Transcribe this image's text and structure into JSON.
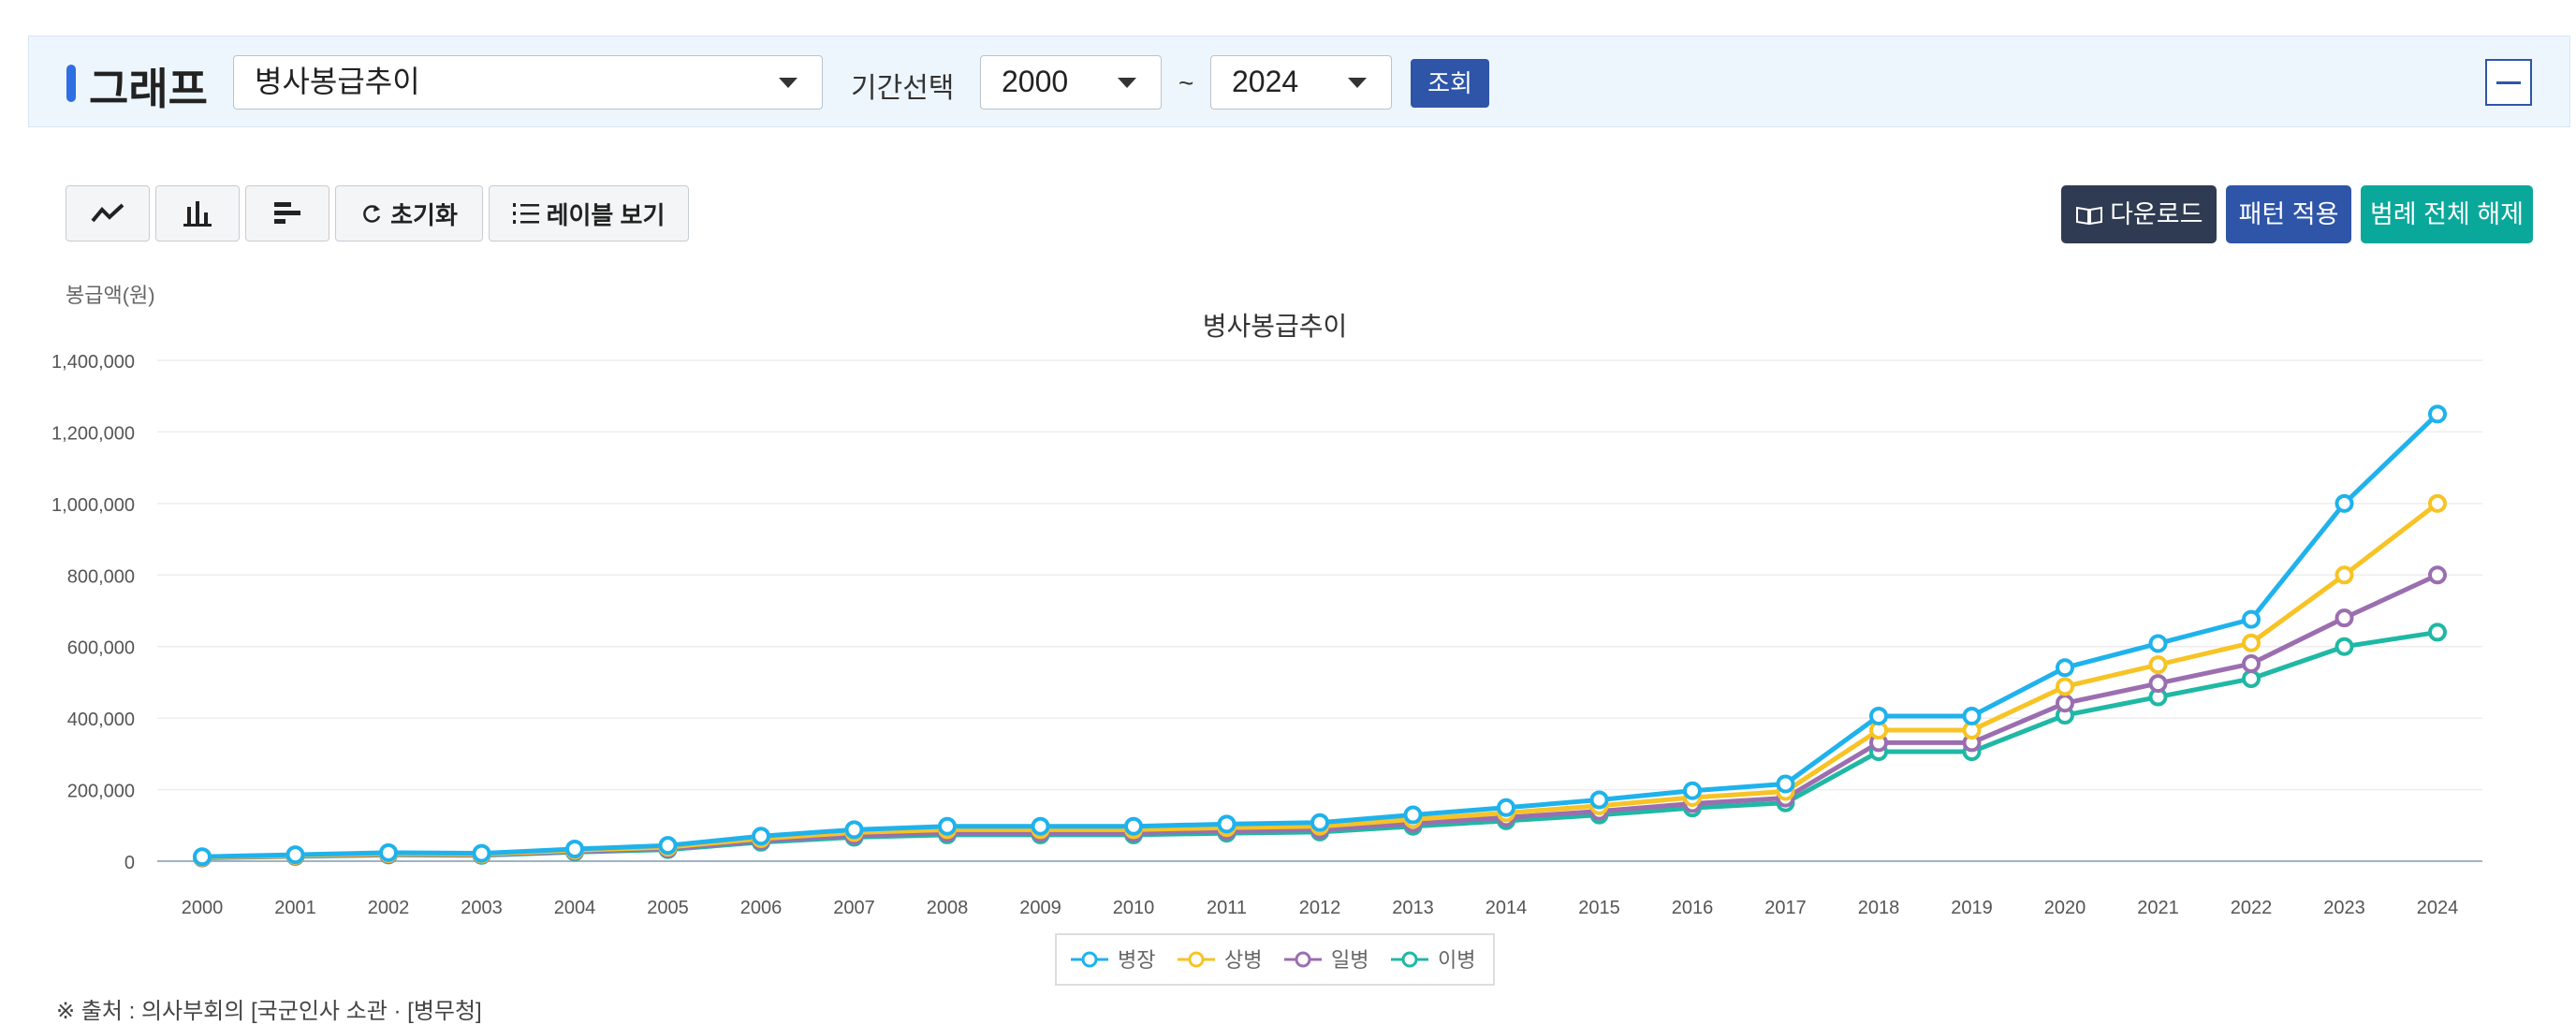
{
  "header": {
    "title": "그래프",
    "chart_select": "병사봉급추이",
    "period_label": "기간선택",
    "start_year": "2000",
    "tilde": "~",
    "end_year": "2024",
    "search_label": "조회"
  },
  "toolbar": {
    "reset_label": "초기화",
    "label_view_label": "레이블 보기",
    "download_label": "다운로드",
    "pattern_label": "패턴 적용",
    "legend_off_label": "범례 전체 해제"
  },
  "colors": {
    "accent": "#2f6ee3",
    "dark_button": "#2f3b52",
    "blue_button": "#2e55a8",
    "teal_button": "#0aa89a"
  },
  "chart_data": {
    "type": "line",
    "title": "병사봉급추이",
    "ylabel": "봉급액(원)",
    "xlabel": "",
    "ylim": [
      0,
      1400000
    ],
    "yticks": [
      0,
      200000,
      400000,
      600000,
      800000,
      1000000,
      1200000,
      1400000
    ],
    "ytick_labels": [
      "0",
      "200,000",
      "400,000",
      "600,000",
      "800,000",
      "1,000,000",
      "1,200,000",
      "1,400,000"
    ],
    "categories": [
      "2000",
      "2001",
      "2002",
      "2003",
      "2004",
      "2005",
      "2006",
      "2007",
      "2008",
      "2009",
      "2010",
      "2011",
      "2012",
      "2013",
      "2014",
      "2015",
      "2016",
      "2017",
      "2018",
      "2019",
      "2020",
      "2021",
      "2022",
      "2023",
      "2024"
    ],
    "series": [
      {
        "name": "병장",
        "color": "#1fb2ec",
        "values": [
          12500,
          18000,
          24000,
          22000,
          34000,
          44000,
          70000,
          88000,
          97500,
          97500,
          97500,
          103800,
          108000,
          129400,
          149700,
          171400,
          197000,
          216000,
          405700,
          405700,
          540900,
          608500,
          676100,
          1000000,
          1250000
        ]
      },
      {
        "name": "상병",
        "color": "#f7c325",
        "values": [
          11000,
          15800,
          21000,
          19500,
          30500,
          39000,
          63000,
          80000,
          88000,
          88000,
          88000,
          93700,
          97500,
          116800,
          135100,
          154800,
          178000,
          195000,
          366200,
          366200,
          488200,
          549200,
          610200,
          800000,
          1000000
        ]
      },
      {
        "name": "일병",
        "color": "#9b6eb0",
        "values": [
          9800,
          14300,
          19000,
          17600,
          27500,
          35000,
          57000,
          72000,
          79500,
          79500,
          79500,
          84700,
          88000,
          105600,
          122100,
          139800,
          161000,
          176400,
          331300,
          331300,
          441700,
          496900,
          552100,
          680000,
          800000
        ]
      },
      {
        "name": "이병",
        "color": "#1fb8a4",
        "values": [
          9000,
          13300,
          17500,
          16300,
          25400,
          32500,
          53000,
          67000,
          73500,
          73500,
          73500,
          78300,
          81500,
          97500,
          112900,
          129200,
          148800,
          163000,
          306100,
          306100,
          408100,
          459100,
          510100,
          600000,
          640000
        ]
      }
    ],
    "legend_position": "bottom-center",
    "grid": true
  },
  "source": "※ 출처 : 의사부회의 [국군인사 소관 · [병무청]"
}
